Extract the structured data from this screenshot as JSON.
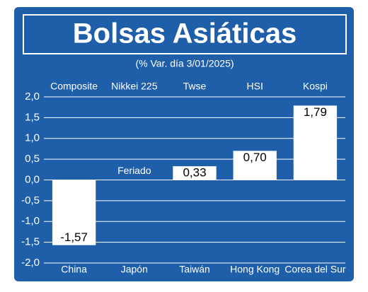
{
  "chart_data": {
    "type": "bar",
    "title": "Bolsas Asiáticas",
    "subtitle": "(% Var. día 3/01/2025)",
    "categories": [
      "China",
      "Japón",
      "Taiwán",
      "Hong Kong",
      "Corea del Sur"
    ],
    "indices": [
      "Composite",
      "Nikkei 225",
      "Twse",
      "HSI",
      "Kospi"
    ],
    "series": [
      {
        "color": "#ffffff",
        "values": [
          -1.57,
          null,
          0.33,
          0.7,
          1.79
        ],
        "value_labels": [
          "-1,57",
          null,
          "0,33",
          "0,70",
          "1,79"
        ]
      }
    ],
    "annotation": "Feriado",
    "ylim": [
      -2.0,
      2.0
    ],
    "yticks": [
      {
        "value": -2.0,
        "label": "-2,0"
      },
      {
        "value": -1.5,
        "label": "-1,5"
      },
      {
        "value": -1.0,
        "label": "-1,0"
      },
      {
        "value": -0.5,
        "label": "-0,5"
      },
      {
        "value": 0.0,
        "label": "0,0"
      },
      {
        "value": 0.5,
        "label": "0,5"
      },
      {
        "value": 1.0,
        "label": "1,0"
      },
      {
        "value": 1.5,
        "label": "1,5"
      },
      {
        "value": 2.0,
        "label": "2,0"
      }
    ],
    "grid": true,
    "background": "#1f5faa"
  }
}
